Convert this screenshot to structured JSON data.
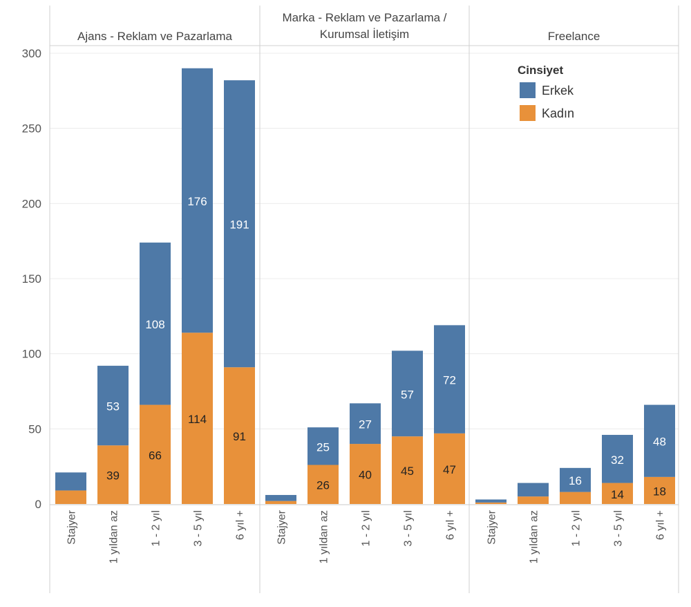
{
  "chart_data": {
    "type": "bar",
    "stacked": true,
    "ylim": [
      0,
      300
    ],
    "yticks": [
      0,
      50,
      100,
      150,
      200,
      250,
      300
    ],
    "grid": true,
    "legend": {
      "title": "Cinsiyet",
      "placement": "top-right"
    },
    "categories": [
      "Stajyer",
      "1 yıldan az",
      "1 - 2 yıl",
      "3 - 5 yıl",
      "6 yıl +"
    ],
    "series_meta": [
      {
        "name": "Erkek",
        "color": "#4e79a7"
      },
      {
        "name": "Kadın",
        "color": "#e8913a"
      }
    ],
    "panels": [
      {
        "title_lines": [
          "Ajans - Reklam ve Pazarlama"
        ],
        "series": [
          {
            "name": "Kadın",
            "values": [
              9,
              39,
              66,
              114,
              91
            ]
          },
          {
            "name": "Erkek",
            "values": [
              12,
              53,
              108,
              176,
              191
            ]
          }
        ],
        "labels": {
          "Kadın": [
            "",
            "39",
            "66",
            "114",
            "91"
          ],
          "Erkek": [
            "",
            "53",
            "108",
            "176",
            "191"
          ]
        }
      },
      {
        "title_lines": [
          "Marka - Reklam ve Pazarlama /",
          "Kurumsal İletişim"
        ],
        "series": [
          {
            "name": "Kadın",
            "values": [
              2,
              26,
              40,
              45,
              47
            ]
          },
          {
            "name": "Erkek",
            "values": [
              4,
              25,
              27,
              57,
              72
            ]
          }
        ],
        "labels": {
          "Kadın": [
            "",
            "26",
            "40",
            "45",
            "47"
          ],
          "Erkek": [
            "",
            "25",
            "27",
            "57",
            "72"
          ]
        }
      },
      {
        "title_lines": [
          "Freelance"
        ],
        "series": [
          {
            "name": "Kadın",
            "values": [
              1,
              5,
              8,
              14,
              18
            ]
          },
          {
            "name": "Erkek",
            "values": [
              2,
              9,
              16,
              32,
              48
            ]
          }
        ],
        "labels": {
          "Kadın": [
            "",
            "",
            "",
            "14",
            "18"
          ],
          "Erkek": [
            "",
            "",
            "16",
            "32",
            "48"
          ]
        }
      }
    ]
  }
}
